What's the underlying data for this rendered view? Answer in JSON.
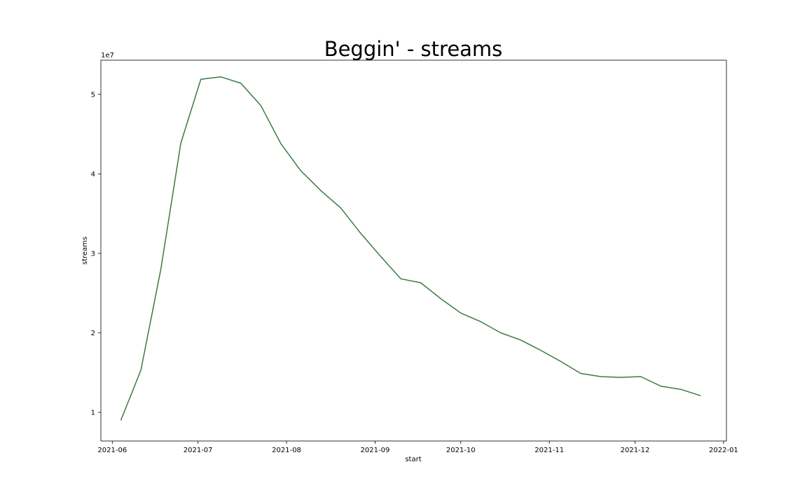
{
  "chart_data": {
    "type": "line",
    "title": "Beggin' - streams",
    "xlabel": "start",
    "ylabel": "streams",
    "y_offset_label": "1e7",
    "y_scale_factor": 10000000,
    "grid": false,
    "line_color": "#3b7a43",
    "x_ticks": [
      {
        "date": "2021-06-01",
        "label": "2021-06"
      },
      {
        "date": "2021-07-01",
        "label": "2021-07"
      },
      {
        "date": "2021-08-01",
        "label": "2021-08"
      },
      {
        "date": "2021-09-01",
        "label": "2021-09"
      },
      {
        "date": "2021-10-01",
        "label": "2021-10"
      },
      {
        "date": "2021-11-01",
        "label": "2021-11"
      },
      {
        "date": "2021-12-01",
        "label": "2021-12"
      },
      {
        "date": "2022-01-01",
        "label": "2022-01"
      }
    ],
    "y_ticks": [
      {
        "value": 10000000,
        "label": "1"
      },
      {
        "value": 20000000,
        "label": "2"
      },
      {
        "value": 30000000,
        "label": "3"
      },
      {
        "value": 40000000,
        "label": "4"
      },
      {
        "value": 50000000,
        "label": "5"
      }
    ],
    "xlim": [
      "2021-05-28",
      "2022-01-02"
    ],
    "ylim": [
      6400000,
      54300000
    ],
    "series": [
      {
        "x": [
          "2021-06-04",
          "2021-06-11",
          "2021-06-18",
          "2021-06-25",
          "2021-07-02",
          "2021-07-09",
          "2021-07-16",
          "2021-07-23",
          "2021-07-30",
          "2021-08-06",
          "2021-08-13",
          "2021-08-20",
          "2021-08-27",
          "2021-09-03",
          "2021-09-10",
          "2021-09-17",
          "2021-09-24",
          "2021-10-01",
          "2021-10-08",
          "2021-10-15",
          "2021-10-22",
          "2021-10-29",
          "2021-11-05",
          "2021-11-12",
          "2021-11-19",
          "2021-11-26",
          "2021-12-03",
          "2021-12-10",
          "2021-12-17",
          "2021-12-24"
        ],
        "values": [
          9000000,
          15300000,
          28000000,
          43900000,
          51900000,
          52200000,
          51400000,
          48600000,
          43800000,
          40400000,
          37900000,
          35700000,
          32500000,
          29600000,
          26800000,
          26300000,
          24300000,
          22500000,
          21400000,
          20000000,
          19100000,
          17800000,
          16400000,
          14900000,
          14500000,
          14400000,
          14500000,
          13300000,
          12900000,
          12100000
        ]
      }
    ]
  }
}
